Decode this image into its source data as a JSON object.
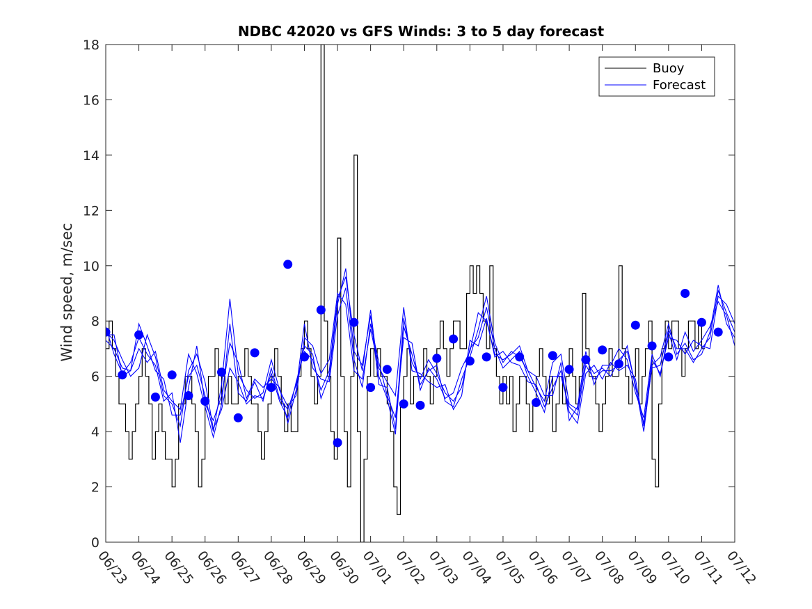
{
  "chart_data": {
    "type": "line",
    "title": "NDBC 42020 vs GFS Winds: 3 to 5 day forecast",
    "xlabel": "",
    "ylabel": "Wind speed, m/sec",
    "x_tick_labels": [
      "06/23",
      "06/24",
      "06/25",
      "06/26",
      "06/27",
      "06/28",
      "06/29",
      "06/30",
      "07/01",
      "07/02",
      "07/03",
      "07/04",
      "07/05",
      "07/06",
      "07/07",
      "07/08",
      "07/09",
      "07/10",
      "07/11",
      "07/12"
    ],
    "y_ticks": [
      0,
      2,
      4,
      6,
      8,
      10,
      12,
      14,
      16,
      18
    ],
    "xlim_days": [
      0,
      19
    ],
    "ylim": [
      0,
      18
    ],
    "grid": false,
    "legend": {
      "position": "top-right",
      "entries": [
        "Buoy",
        "Forecast"
      ]
    },
    "colors": {
      "buoy": "#000000",
      "forecast": "#0000ff",
      "points": "#0000ff"
    },
    "buoy": {
      "name": "Buoy",
      "t": [
        0.0,
        0.1,
        0.2,
        0.3,
        0.4,
        0.5,
        0.6,
        0.7,
        0.8,
        0.9,
        1.0,
        1.1,
        1.2,
        1.3,
        1.4,
        1.5,
        1.6,
        1.7,
        1.8,
        1.9,
        2.0,
        2.1,
        2.2,
        2.3,
        2.4,
        2.5,
        2.6,
        2.7,
        2.8,
        2.9,
        3.0,
        3.1,
        3.2,
        3.3,
        3.4,
        3.5,
        3.6,
        3.7,
        3.8,
        3.9,
        4.0,
        4.1,
        4.2,
        4.3,
        4.4,
        4.5,
        4.6,
        4.7,
        4.8,
        4.9,
        5.0,
        5.1,
        5.2,
        5.3,
        5.4,
        5.5,
        5.6,
        5.7,
        5.8,
        5.9,
        6.0,
        6.1,
        6.2,
        6.3,
        6.4,
        6.5,
        6.6,
        6.7,
        6.8,
        6.9,
        7.0,
        7.1,
        7.2,
        7.3,
        7.4,
        7.5,
        7.6,
        7.7,
        7.8,
        7.9,
        8.0,
        8.1,
        8.2,
        8.3,
        8.4,
        8.5,
        8.6,
        8.7,
        8.8,
        8.9,
        9.0,
        9.1,
        9.2,
        9.3,
        9.4,
        9.5,
        9.6,
        9.7,
        9.8,
        9.9,
        10.0,
        10.1,
        10.2,
        10.3,
        10.4,
        10.5,
        10.6,
        10.7,
        10.8,
        10.9,
        11.0,
        11.1,
        11.2,
        11.3,
        11.4,
        11.5,
        11.6,
        11.7,
        11.8,
        11.9,
        12.0,
        12.1,
        12.2,
        12.3,
        12.4,
        12.5,
        12.6,
        12.7,
        12.8,
        12.9,
        13.0,
        13.1,
        13.2,
        13.3,
        13.4,
        13.5,
        13.6,
        13.7,
        13.8,
        13.9,
        14.0,
        14.1,
        14.2,
        14.3,
        14.4,
        14.5,
        14.6,
        14.7,
        14.8,
        14.9,
        15.0,
        15.1,
        15.2,
        15.3,
        15.4,
        15.5,
        15.6,
        15.7,
        15.8,
        15.9,
        16.0,
        16.1,
        16.2,
        16.3,
        16.4,
        16.5,
        16.6,
        16.7,
        16.8,
        16.9,
        17.0,
        17.1,
        17.2,
        17.3,
        17.4,
        17.5,
        17.6,
        17.7,
        17.8,
        17.9,
        18.0,
        18.1,
        18.2,
        18.3,
        18.4,
        18.5,
        18.6,
        18.7,
        18.8,
        18.9,
        19.0
      ],
      "v": [
        7,
        8,
        7,
        6,
        5,
        5,
        4,
        3,
        4,
        5,
        6,
        7,
        6,
        5,
        3,
        4,
        5,
        4,
        3,
        3,
        2,
        3,
        5,
        5,
        6,
        6,
        5,
        4,
        2,
        3,
        5,
        6,
        6,
        7,
        5,
        6,
        5,
        6,
        5,
        5,
        6,
        6,
        7,
        6,
        5,
        5,
        4,
        3,
        4,
        5,
        6,
        7,
        6,
        5,
        4,
        5,
        4,
        4,
        6,
        7,
        8,
        7,
        6,
        5,
        6,
        18,
        8,
        6,
        4,
        3,
        11,
        6,
        4,
        2,
        6,
        14,
        4,
        0,
        3,
        6,
        7,
        6,
        7,
        6,
        6,
        5,
        4,
        2,
        1,
        5,
        6,
        7,
        5,
        6,
        6,
        6,
        7,
        6,
        5,
        6,
        7,
        8,
        7,
        6,
        7,
        8,
        8,
        7,
        7,
        9,
        10,
        9,
        10,
        9,
        8,
        7,
        10,
        7,
        6,
        5,
        6,
        5,
        6,
        4,
        5,
        6,
        6,
        5,
        4,
        5,
        6,
        7,
        6,
        5,
        6,
        4,
        5,
        6,
        5,
        6,
        7,
        6,
        5,
        6,
        9,
        7,
        6,
        6,
        5,
        4,
        5,
        6,
        7,
        6,
        6,
        10,
        7,
        6,
        5,
        6,
        7,
        5,
        6,
        7,
        8,
        3,
        2,
        5,
        7,
        8,
        7,
        8,
        8,
        7,
        6,
        7,
        8,
        8,
        7,
        8,
        7
      ]
    },
    "forecast_runs": [
      {
        "name": "Forecast",
        "t": [
          0.0,
          0.25,
          0.5,
          0.75,
          1.0,
          1.25,
          1.5,
          1.75,
          2.0,
          2.25,
          2.5,
          2.75,
          3.0,
          3.25,
          3.5,
          3.75,
          4.0,
          4.25,
          4.5,
          4.75,
          5.0,
          5.25,
          5.5,
          5.75,
          6.0,
          6.25,
          6.5,
          6.75,
          7.0,
          7.25,
          7.5,
          7.75,
          8.0,
          8.25,
          8.5,
          8.75,
          9.0,
          9.25,
          9.5,
          9.75,
          10.0,
          10.25,
          10.5,
          10.75,
          11.0,
          11.25,
          11.5,
          11.75,
          12.0,
          12.25,
          12.5,
          12.75,
          13.0,
          13.25,
          13.5,
          13.75,
          14.0,
          14.25,
          14.5,
          14.75,
          15.0,
          15.25,
          15.5,
          15.75,
          16.0,
          16.25,
          16.5,
          16.75,
          17.0,
          17.25,
          17.5,
          17.75,
          18.0,
          18.25,
          18.5,
          18.75,
          19.0
        ],
        "v": [
          7.6,
          7.3,
          6.6,
          6.0,
          6.3,
          7.5,
          6.7,
          5.3,
          5.0,
          4.2,
          6.2,
          6.8,
          5.8,
          4.1,
          4.8,
          6.3,
          5.8,
          5.0,
          5.3,
          5.2,
          6.1,
          5.1,
          4.5,
          5.8,
          6.9,
          6.6,
          5.5,
          6.2,
          8.8,
          9.6,
          7.5,
          6.2,
          8.4,
          6.0,
          5.2,
          3.9,
          7.8,
          6.8,
          5.7,
          6.2,
          6.4,
          5.1,
          4.9,
          5.9,
          6.7,
          7.7,
          8.9,
          7.2,
          6.5,
          6.9,
          6.7,
          6.2,
          5.6,
          5.1,
          6.5,
          6.8,
          5.0,
          4.8,
          6.6,
          6.1,
          6.3,
          6.0,
          6.6,
          6.9,
          5.7,
          4.0,
          6.4,
          6.7,
          7.9,
          6.8,
          7.2,
          6.6,
          6.8,
          7.6,
          9.3,
          7.9,
          7.4
        ]
      },
      {
        "name": "Forecast",
        "t": [
          0.0,
          0.25,
          0.5,
          0.75,
          1.0,
          1.25,
          1.5,
          1.75,
          2.0,
          2.25,
          2.5,
          2.75,
          3.0,
          3.25,
          3.5,
          3.75,
          4.0,
          4.25,
          4.5,
          4.75,
          5.0,
          5.25,
          5.5,
          5.75,
          6.0,
          6.25,
          6.5,
          6.75,
          7.0,
          7.25,
          7.5,
          7.75,
          8.0,
          8.25,
          8.5,
          8.75,
          9.0,
          9.25,
          9.5,
          9.75,
          10.0,
          10.25,
          10.5,
          10.75,
          11.0,
          11.25,
          11.5,
          11.75,
          12.0,
          12.25,
          12.5,
          12.75,
          13.0,
          13.25,
          13.5,
          13.75,
          14.0,
          14.25,
          14.5,
          14.75,
          15.0,
          15.25,
          15.5,
          15.75,
          16.0,
          16.25,
          16.5,
          16.75,
          17.0,
          17.25,
          17.5,
          17.75,
          18.0,
          18.25,
          18.5,
          18.75,
          19.0
        ],
        "v": [
          7.3,
          7.0,
          6.3,
          6.2,
          7.9,
          7.1,
          6.2,
          5.9,
          4.6,
          4.6,
          6.0,
          6.4,
          5.3,
          4.0,
          5.7,
          8.8,
          6.1,
          5.5,
          5.2,
          5.4,
          6.6,
          5.5,
          4.9,
          5.3,
          7.4,
          7.1,
          6.1,
          6.6,
          9.0,
          8.6,
          6.2,
          5.9,
          7.7,
          6.3,
          5.8,
          5.3,
          8.5,
          6.2,
          6.1,
          5.8,
          5.6,
          5.7,
          4.8,
          5.3,
          7.3,
          7.1,
          8.1,
          6.7,
          6.9,
          6.5,
          6.4,
          5.8,
          5.7,
          4.9,
          5.6,
          6.2,
          4.7,
          4.3,
          6.1,
          6.4,
          5.9,
          6.5,
          6.2,
          6.4,
          5.9,
          4.2,
          6.6,
          6.1,
          7.4,
          7.3,
          6.8,
          7.3,
          7.1,
          7.0,
          8.9,
          8.6,
          7.9
        ]
      },
      {
        "name": "Forecast",
        "t": [
          0.0,
          0.25,
          0.5,
          0.75,
          1.0,
          1.25,
          1.5,
          1.75,
          2.0,
          2.25,
          2.5,
          2.75,
          3.0,
          3.25,
          3.5,
          3.75,
          4.0,
          4.25,
          4.5,
          4.75,
          5.0,
          5.25,
          5.5,
          5.75,
          6.0,
          6.25,
          6.5,
          6.75,
          7.0,
          7.25,
          7.5,
          7.75,
          8.0,
          8.25,
          8.5,
          8.75,
          9.0,
          9.25,
          9.5,
          9.75,
          10.0,
          10.25,
          10.5,
          10.75,
          11.0,
          11.25,
          11.5,
          11.75,
          12.0,
          12.25,
          12.5,
          12.75,
          13.0,
          13.25,
          13.5,
          13.75,
          14.0,
          14.25,
          14.5,
          14.75,
          15.0,
          15.25,
          15.5,
          15.75,
          16.0,
          16.25,
          16.5,
          16.75,
          17.0,
          17.25,
          17.5,
          17.75,
          18.0,
          18.25,
          18.5,
          18.75,
          19.0
        ],
        "v": [
          7.8,
          6.8,
          6.1,
          6.5,
          7.4,
          6.8,
          6.4,
          5.1,
          5.4,
          3.6,
          5.6,
          7.1,
          5.0,
          4.4,
          5.3,
          7.2,
          6.5,
          5.2,
          5.9,
          5.6,
          5.9,
          5.6,
          4.3,
          5.5,
          7.9,
          6.3,
          5.9,
          5.8,
          8.2,
          9.2,
          6.6,
          5.6,
          7.9,
          6.5,
          5.3,
          4.5,
          7.4,
          7.2,
          5.5,
          6.3,
          5.9,
          5.2,
          5.4,
          6.3,
          6.9,
          8.3,
          8.0,
          6.8,
          6.6,
          6.8,
          7.1,
          6.2,
          6.0,
          5.3,
          5.3,
          6.5,
          4.4,
          4.9,
          6.9,
          5.7,
          6.4,
          6.4,
          7.0,
          6.6,
          5.4,
          4.5,
          6.8,
          6.0,
          7.6,
          6.6,
          7.6,
          6.9,
          7.3,
          7.8,
          8.7,
          8.2,
          7.1
        ]
      },
      {
        "name": "Forecast",
        "t": [
          0.0,
          0.25,
          0.5,
          0.75,
          1.0,
          1.25,
          1.5,
          1.75,
          2.0,
          2.25,
          2.5,
          2.75,
          3.0,
          3.25,
          3.5,
          3.75,
          4.0,
          4.25,
          4.5,
          4.75,
          5.0,
          5.25,
          5.5,
          5.75,
          6.0,
          6.25,
          6.5,
          6.75,
          7.0,
          7.25,
          7.5,
          7.75,
          8.0,
          8.25,
          8.5,
          8.75,
          9.0,
          9.25,
          9.5,
          9.75,
          10.0,
          10.25,
          10.5,
          10.75,
          11.0,
          11.25,
          11.5,
          11.75,
          12.0,
          12.25,
          12.5,
          12.75,
          13.0,
          13.25,
          13.5,
          13.75,
          14.0,
          14.25,
          14.5,
          14.75,
          15.0,
          15.25,
          15.5,
          15.75,
          16.0,
          16.25,
          16.5,
          16.75,
          17.0,
          17.25,
          17.5,
          17.75,
          18.0,
          18.25,
          18.5,
          18.75,
          19.0
        ],
        "v": [
          7.5,
          7.5,
          6.0,
          6.2,
          7.0,
          6.5,
          6.9,
          5.5,
          5.1,
          4.8,
          6.8,
          6.1,
          4.9,
          3.8,
          5.0,
          7.9,
          5.4,
          5.1,
          5.8,
          5.1,
          6.3,
          5.2,
          4.8,
          5.7,
          7.1,
          6.8,
          5.2,
          6.0,
          8.6,
          9.9,
          6.9,
          6.4,
          8.2,
          5.7,
          5.6,
          4.1,
          8.1,
          6.5,
          5.9,
          6.6,
          6.1,
          5.4,
          5.1,
          5.6,
          7.0,
          7.4,
          8.5,
          7.0,
          6.3,
          6.6,
          6.9,
          6.0,
          5.4,
          4.7,
          6.0,
          6.0,
          4.9,
          4.6,
          6.4,
          5.9,
          6.2,
          6.2,
          6.4,
          7.1,
          5.6,
          4.3,
          6.3,
          6.4,
          7.7,
          7.0,
          7.0,
          6.5,
          7.0,
          7.4,
          9.1,
          8.3,
          7.6
        ]
      }
    ],
    "points": {
      "name": "",
      "t": [
        0.0,
        0.5,
        1.0,
        1.5,
        2.0,
        2.5,
        3.0,
        3.5,
        4.0,
        4.5,
        5.0,
        5.5,
        6.0,
        6.5,
        7.0,
        7.5,
        8.0,
        8.5,
        9.0,
        9.5,
        10.0,
        10.5,
        11.0,
        11.5,
        12.0,
        12.5,
        13.0,
        13.5,
        14.0,
        14.5,
        15.0,
        15.5,
        16.0,
        16.5,
        17.0,
        17.5,
        18.0,
        18.5
      ],
      "v": [
        7.6,
        6.05,
        7.5,
        5.25,
        6.05,
        5.3,
        5.1,
        6.15,
        4.5,
        6.85,
        5.6,
        10.05,
        6.7,
        8.4,
        3.6,
        7.95,
        5.6,
        6.25,
        5.0,
        4.95,
        6.65,
        7.35,
        6.55,
        6.7,
        5.6,
        6.7,
        5.05,
        6.75,
        6.25,
        6.6,
        6.95,
        6.45,
        7.85,
        7.1,
        6.7,
        9.0,
        7.95,
        7.6
      ]
    }
  }
}
